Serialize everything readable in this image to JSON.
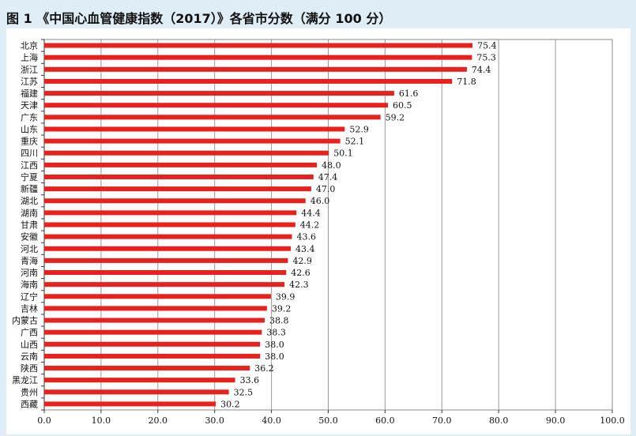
{
  "title": "图 1 《中国心血管健康指数（2017）》各省市分数（满分 100 分）",
  "chart_data": {
    "type": "bar",
    "orientation": "horizontal",
    "title": "图 1 《中国心血管健康指数（2017）》各省市分数（满分 100 分）",
    "xlabel": "",
    "ylabel": "",
    "xlim": [
      0,
      100
    ],
    "xticks": [
      "0.0",
      "10.0",
      "20.0",
      "30.0",
      "40.0",
      "50.0",
      "60.0",
      "70.0",
      "80.0",
      "90.0",
      "100.0"
    ],
    "grid": "vertical",
    "bar_color": "#e8211d",
    "categories": [
      "北京",
      "上海",
      "浙江",
      "江苏",
      "福建",
      "天津",
      "广东",
      "山东",
      "重庆",
      "四川",
      "江西",
      "宁夏",
      "新疆",
      "湖北",
      "湖南",
      "甘肃",
      "安徽",
      "河北",
      "青海",
      "河南",
      "海南",
      "辽宁",
      "吉林",
      "内蒙古",
      "广西",
      "山西",
      "云南",
      "陕西",
      "黑龙江",
      "贵州",
      "西藏"
    ],
    "values": [
      75.4,
      75.3,
      74.4,
      71.8,
      61.6,
      60.5,
      59.2,
      52.9,
      52.1,
      50.1,
      48.0,
      47.4,
      47.0,
      46.0,
      44.4,
      44.2,
      43.6,
      43.4,
      42.9,
      42.6,
      42.3,
      39.9,
      39.2,
      38.8,
      38.3,
      38.0,
      38.0,
      36.2,
      33.6,
      32.5,
      30.2
    ],
    "value_labels": [
      "75.4",
      "75.3",
      "74.4",
      "71.8",
      "61.6",
      "60.5",
      "59.2",
      "52.9",
      "52.1",
      "50.1",
      "48.0",
      "47.4",
      "47.0",
      "46.0",
      "44.4",
      "44.2",
      "43.6",
      "43.4",
      "42.9",
      "42.6",
      "42.3",
      "39.9",
      "39.2",
      "38.8",
      "38.3",
      "38.0",
      "38.0",
      "36.2",
      "33.6",
      "32.5",
      "30.2"
    ]
  }
}
